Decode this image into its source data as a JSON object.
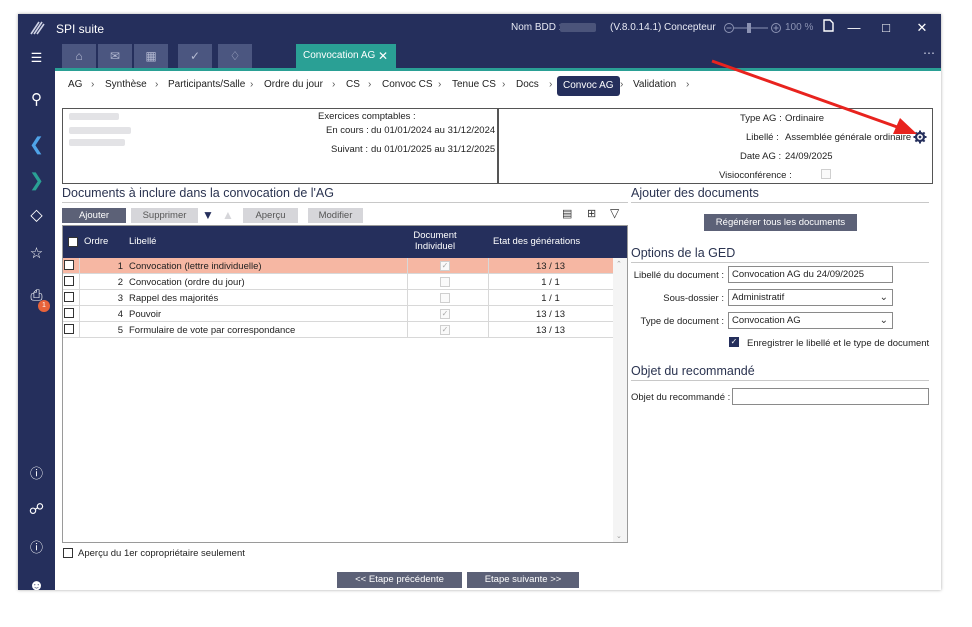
{
  "app": {
    "name": "SPI suite",
    "db_label": "Nom BDD :",
    "version": "(V.8.0.14.1)",
    "mode": "Concepteur",
    "zoom": "100 %"
  },
  "tabs": {
    "active_label": "Convocation AG"
  },
  "breadcrumb": [
    "AG",
    "Synthèse",
    "Participants/Salle",
    "Ordre du jour",
    "CS",
    "Convoc CS",
    "Tenue CS",
    "Docs",
    "Convoc AG",
    "Validation"
  ],
  "breadcrumb_active": "Convoc AG",
  "exercices": {
    "title": "Exercices comptables :",
    "current_label": "En cours :",
    "current_value": "du 01/01/2024 au 31/12/2024",
    "next_label": "Suivant :",
    "next_value": "du 01/01/2025 au 31/12/2025"
  },
  "ag_info": {
    "type_label": "Type AG :",
    "type_value": "Ordinaire",
    "libelle_label": "Libellé :",
    "libelle_value": "Assemblée générale ordinaire",
    "date_label": "Date AG :",
    "date_value": "24/09/2025",
    "visio_label": "Visioconférence :"
  },
  "documents": {
    "title": "Documents à inclure dans la convocation de l'AG",
    "add_label": "Ajouter",
    "delete_label": "Supprimer",
    "preview_label": "Aperçu",
    "modify_label": "Modifier",
    "columns": {
      "ordre": "Ordre",
      "libelle": "Libellé",
      "individuel": "Document Individuel",
      "etat": "Etat des générations"
    },
    "rows": [
      {
        "ordre": "1",
        "libelle": "Convocation (lettre individuelle)",
        "individuel": true,
        "etat": "13 / 13"
      },
      {
        "ordre": "2",
        "libelle": "Convocation (ordre du jour)",
        "individuel": false,
        "etat": "1 / 1"
      },
      {
        "ordre": "3",
        "libelle": "Rappel des majorités",
        "individuel": false,
        "etat": "1 / 1"
      },
      {
        "ordre": "4",
        "libelle": "Pouvoir",
        "individuel": true,
        "etat": "13 / 13"
      },
      {
        "ordre": "5",
        "libelle": "Formulaire de vote par correspondance",
        "individuel": true,
        "etat": "13 / 13"
      }
    ],
    "preview_first_label": "Aperçu du 1er copropriétaire seulement"
  },
  "add_docs": {
    "title": "Ajouter des documents",
    "regen_label": "Régénérer tous les documents"
  },
  "ged": {
    "title": "Options de la GED",
    "libelle_label": "Libellé du document :",
    "libelle_value": "Convocation AG du 24/09/2025",
    "subfolder_label": "Sous-dossier :",
    "subfolder_value": "Administratif",
    "doctype_label": "Type de document :",
    "doctype_value": "Convocation AG",
    "save_label": "Enregistrer le libellé et le type de document"
  },
  "recommande": {
    "title": "Objet du recommandé",
    "field_label": "Objet du recommandé :",
    "field_value": ""
  },
  "nav": {
    "prev_label": "<< Etape précédente",
    "next_label": "Etape suivante >>"
  },
  "notifications_count": "1",
  "colors": {
    "navy": "#252f5c",
    "teal": "#2aa095",
    "selected_row": "#f6b7a3",
    "annotation_arrow": "#e8231e"
  }
}
